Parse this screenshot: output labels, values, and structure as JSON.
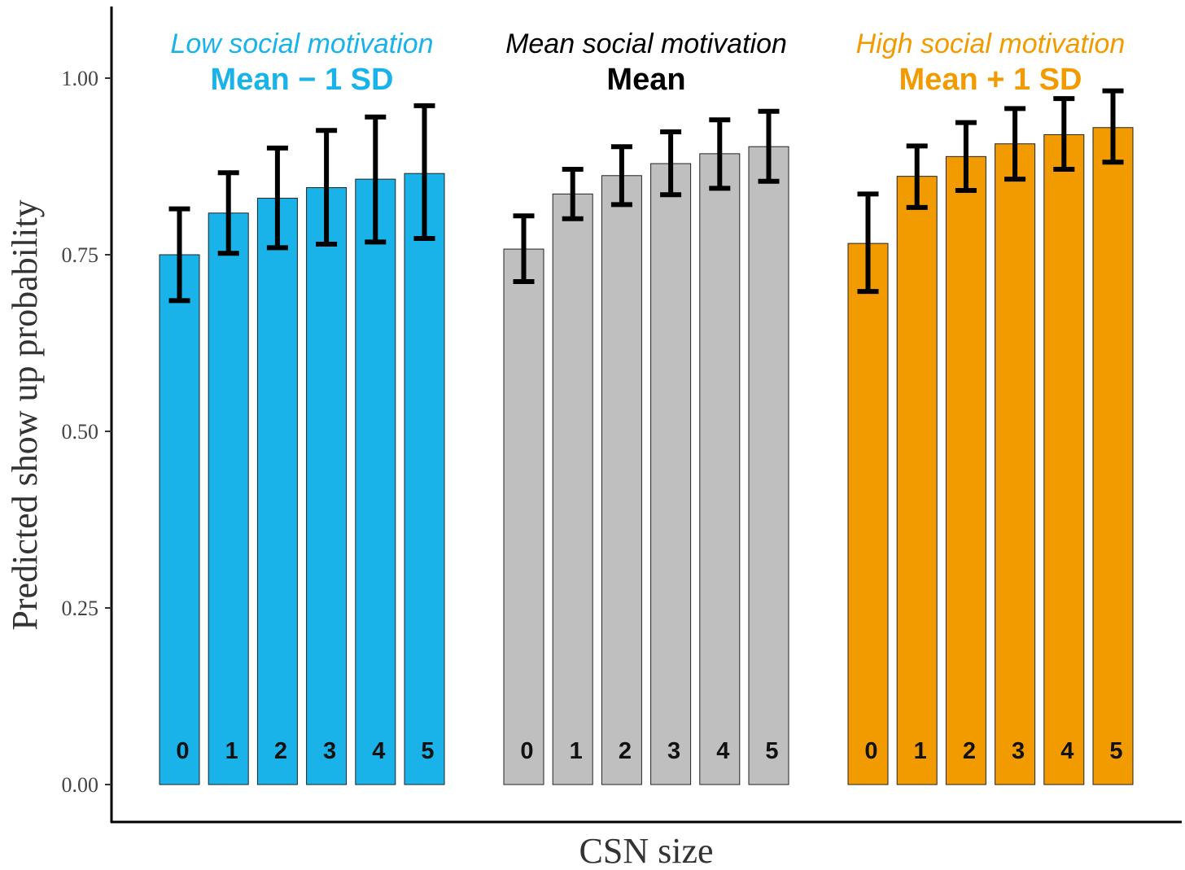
{
  "chart_data": {
    "type": "bar",
    "title": "",
    "xlabel": "CSN size",
    "ylabel": "Predicted show up probability",
    "ylim": [
      0,
      1.1
    ],
    "yticks": [
      "0.00",
      "0.25",
      "0.50",
      "0.75",
      "1.00"
    ],
    "ytick_values": [
      0,
      0.25,
      0.5,
      0.75,
      1.0
    ],
    "grid": false,
    "categories": [
      "0",
      "1",
      "2",
      "3",
      "4",
      "5"
    ],
    "series": [
      {
        "name": "Low social motivation",
        "subtitle": "Mean − 1 SD",
        "color": "#19b3ea",
        "title_color": "#19b3ea",
        "values": [
          0.75,
          0.809,
          0.83,
          0.845,
          0.857,
          0.865
        ],
        "ci_low": [
          0.685,
          0.752,
          0.76,
          0.765,
          0.768,
          0.773
        ],
        "ci_high": [
          0.815,
          0.866,
          0.901,
          0.926,
          0.945,
          0.961
        ]
      },
      {
        "name": "Mean social motivation",
        "subtitle": "Mean",
        "color": "#bfbfbf",
        "title_color": "#000000",
        "values": [
          0.758,
          0.836,
          0.862,
          0.879,
          0.893,
          0.903
        ],
        "ci_low": [
          0.712,
          0.801,
          0.821,
          0.835,
          0.844,
          0.854
        ],
        "ci_high": [
          0.805,
          0.871,
          0.903,
          0.924,
          0.941,
          0.953
        ]
      },
      {
        "name": "High social motivation",
        "subtitle": "Mean + 1 SD",
        "color": "#f29b00",
        "title_color": "#f29b00",
        "values": [
          0.766,
          0.861,
          0.889,
          0.907,
          0.92,
          0.93
        ],
        "ci_low": [
          0.698,
          0.817,
          0.841,
          0.857,
          0.871,
          0.881
        ],
        "ci_high": [
          0.836,
          0.904,
          0.937,
          0.957,
          0.971,
          0.982
        ]
      }
    ]
  }
}
